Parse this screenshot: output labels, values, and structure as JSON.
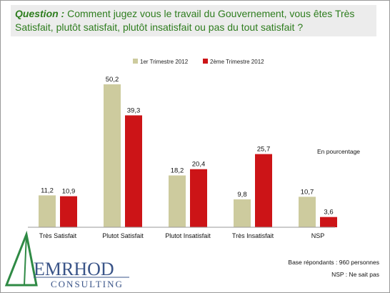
{
  "question": {
    "label": "Question :",
    "text": " Comment jugez vous le travail du Gouvernement, vous êtes Très Satisfait, plutôt satisfait, plutôt insatisfait ou pas du tout satisfait ?"
  },
  "colors": {
    "series1": "#cdcb9e",
    "series2": "#cc1417",
    "question_text": "#2e7d1e",
    "question_bg": "#ececec",
    "logo_text": "#3a5488",
    "logo_tri": "#2f8a45"
  },
  "chart_data": {
    "type": "bar",
    "categories": [
      "Très Satisfait",
      "Plutot Satisfait",
      "Plutot Insatisfait",
      "Très Insatisfait",
      "NSP"
    ],
    "series": [
      {
        "name": "1er Trimestre 2012",
        "values": [
          11.2,
          50.2,
          18.2,
          9.8,
          10.7
        ],
        "labels": [
          "11,2",
          "50,2",
          "18,2",
          "9,8",
          "10,7"
        ]
      },
      {
        "name": "2ème Trimestre 2012",
        "values": [
          10.9,
          39.3,
          20.4,
          25.7,
          3.6
        ],
        "labels": [
          "10,9",
          "39,3",
          "20,4",
          "25,7",
          "3,6"
        ]
      }
    ],
    "ylim": [
      0,
      50.2
    ],
    "grid": false,
    "legend": "top",
    "annotation": "En pourcentage"
  },
  "logo": {
    "name": "EMRHOD",
    "sub": "CONSULTING"
  },
  "notes": {
    "base": "Base répondants : 960  personnes",
    "nsp": "NSP : Ne sait pas"
  }
}
